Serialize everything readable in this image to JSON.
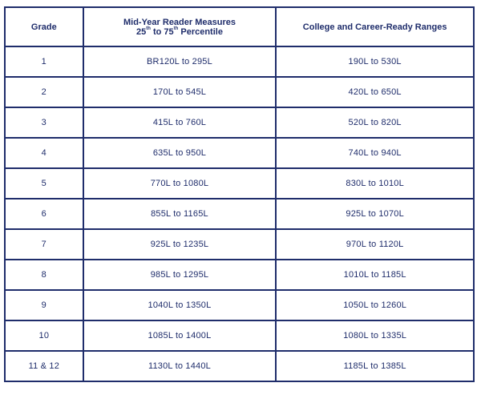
{
  "table": {
    "headers": {
      "grade": "Grade",
      "mid_line1": "Mid-Year Reader Measures",
      "mid_line2_a": "25",
      "mid_line2_sup1": "th",
      "mid_line2_b": " to 75",
      "mid_line2_sup2": "th",
      "mid_line2_c": " Percentile",
      "ccr": "College and Career-Ready Ranges"
    },
    "rows": [
      {
        "grade": "1",
        "mid": "BR120L to 295L",
        "ccr": "190L to 530L"
      },
      {
        "grade": "2",
        "mid": "170L to 545L",
        "ccr": "420L to 650L"
      },
      {
        "grade": "3",
        "mid": "415L to 760L",
        "ccr": "520L to 820L"
      },
      {
        "grade": "4",
        "mid": "635L to 950L",
        "ccr": "740L to 940L"
      },
      {
        "grade": "5",
        "mid": "770L to 1080L",
        "ccr": "830L to 1010L"
      },
      {
        "grade": "6",
        "mid": "855L to 1165L",
        "ccr": "925L to 1070L"
      },
      {
        "grade": "7",
        "mid": "925L to 1235L",
        "ccr": "970L to 1120L"
      },
      {
        "grade": "8",
        "mid": "985L to 1295L",
        "ccr": "1010L to 1185L"
      },
      {
        "grade": "9",
        "mid": "1040L to 1350L",
        "ccr": "1050L to 1260L"
      },
      {
        "grade": "10",
        "mid": "1085L to 1400L",
        "ccr": "1080L to 1335L"
      },
      {
        "grade": "11 & 12",
        "mid": "1130L to 1440L",
        "ccr": "1185L to 1385L"
      }
    ]
  },
  "colors": {
    "text": "#1f2d6b",
    "border": "#1f2d6b",
    "background": "#ffffff"
  }
}
